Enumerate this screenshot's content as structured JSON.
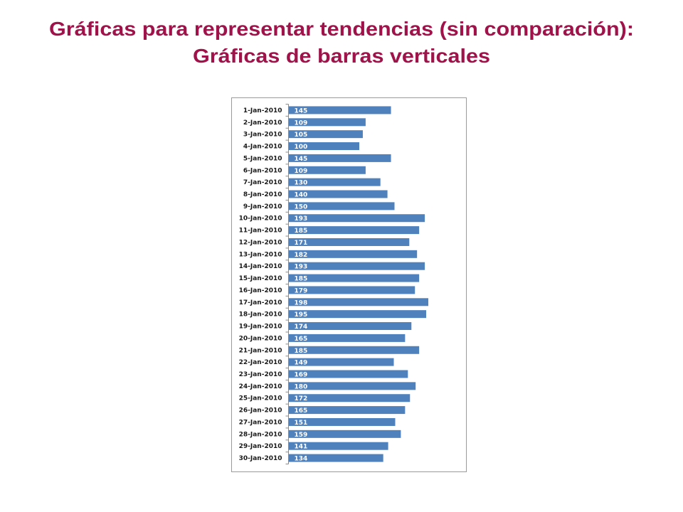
{
  "chart_data": {
    "type": "bar",
    "orientation": "horizontal",
    "title": "Gráficas para representar tendencias (sin comparación):",
    "subtitle": "Gráficas de barras verticales",
    "categories": [
      "1-Jan-2010",
      "2-Jan-2010",
      "3-Jan-2010",
      "4-Jan-2010",
      "5-Jan-2010",
      "6-Jan-2010",
      "7-Jan-2010",
      "8-Jan-2010",
      "9-Jan-2010",
      "10-Jan-2010",
      "11-Jan-2010",
      "12-Jan-2010",
      "13-Jan-2010",
      "14-Jan-2010",
      "15-Jan-2010",
      "16-Jan-2010",
      "17-Jan-2010",
      "18-Jan-2010",
      "19-Jan-2010",
      "20-Jan-2010",
      "21-Jan-2010",
      "22-Jan-2010",
      "23-Jan-2010",
      "24-Jan-2010",
      "25-Jan-2010",
      "26-Jan-2010",
      "27-Jan-2010",
      "28-Jan-2010",
      "29-Jan-2010",
      "30-Jan-2010"
    ],
    "values": [
      145,
      109,
      105,
      100,
      145,
      109,
      130,
      140,
      150,
      193,
      185,
      171,
      182,
      193,
      185,
      179,
      198,
      195,
      174,
      165,
      185,
      149,
      169,
      180,
      172,
      165,
      151,
      159,
      141,
      134
    ],
    "color": "#4f81bd"
  }
}
